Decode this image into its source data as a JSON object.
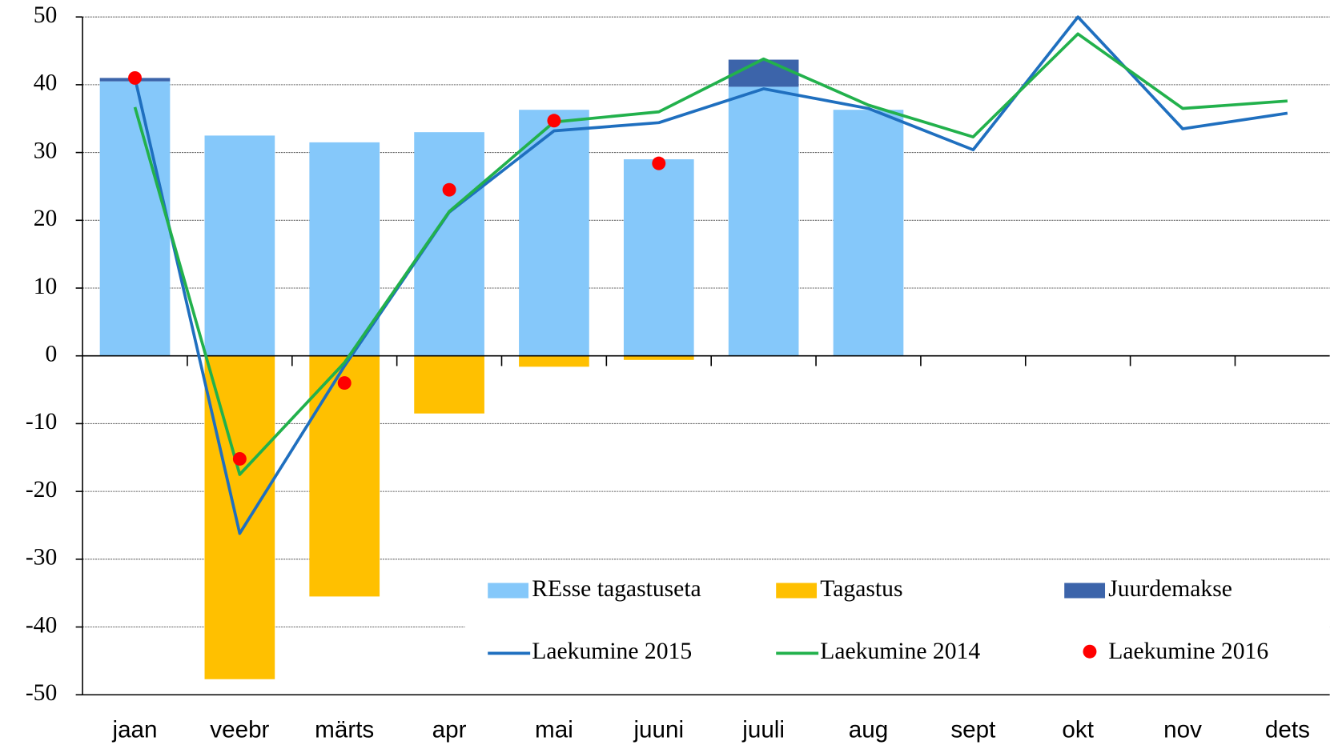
{
  "chart_data": {
    "type": "bar-line",
    "categories": [
      "jaan",
      "veebr",
      "märts",
      "apr",
      "mai",
      "juuni",
      "juuli",
      "aug",
      "sept",
      "okt",
      "nov",
      "dets"
    ],
    "ylim": [
      -50,
      50
    ],
    "yticks": [
      -50,
      -40,
      -30,
      -20,
      -10,
      0,
      10,
      20,
      30,
      40,
      50
    ],
    "grid": true,
    "legend": "lower right",
    "series": [
      {
        "name": "REsse tagastuseta",
        "type": "bar",
        "color": "#85c8fa",
        "values": [
          40.5,
          32.5,
          31.5,
          33,
          36.3,
          29,
          39.7,
          36.3,
          null,
          null,
          null,
          null
        ]
      },
      {
        "name": "Tagastus",
        "type": "bar",
        "color": "#ffc000",
        "values": [
          0,
          -47.7,
          -35.5,
          -8.5,
          -1.6,
          -0.6,
          0,
          0,
          null,
          null,
          null,
          null
        ]
      },
      {
        "name": "Juurdemakse",
        "type": "bar",
        "color": "#3c64aa",
        "values": [
          0.5,
          0,
          0,
          0,
          0,
          0,
          4,
          0,
          null,
          null,
          null,
          null
        ]
      },
      {
        "name": "Laekumine 2015",
        "type": "line",
        "color": "#1f6fbf",
        "values": [
          41,
          -26.2,
          -1.5,
          21.2,
          33.2,
          34.4,
          39.4,
          36.5,
          30.4,
          50,
          33.5,
          35.8
        ]
      },
      {
        "name": "Laekumine 2014",
        "type": "line",
        "color": "#22b14c",
        "values": [
          36.7,
          -17.5,
          -1,
          21.3,
          34.5,
          36,
          43.8,
          37,
          32.3,
          47.5,
          36.5,
          37.6
        ]
      },
      {
        "name": "Laekumine 2016",
        "type": "scatter",
        "color": "#ff0000",
        "values": [
          41,
          -15.2,
          -4,
          24.5,
          34.7,
          28.4,
          null,
          null,
          null,
          null,
          null,
          null
        ]
      }
    ]
  }
}
